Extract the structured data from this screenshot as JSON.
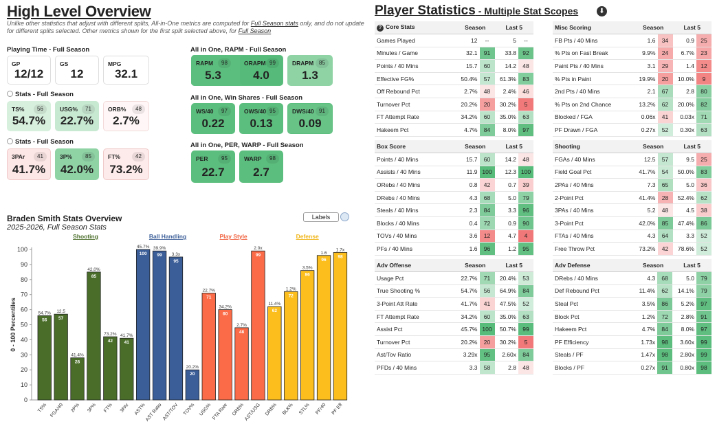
{
  "overview": {
    "title": "High Level Overview",
    "note_a": "Unlike other statistics that adjust with different splits, All-in-One metrics are computed for ",
    "note_link1": "Full Season stats",
    "note_b": " only, and do not update for different splits selected. Other metrics shown for the first split selected above, for ",
    "note_link2": "Full Season",
    "playing_time": {
      "title": "Playing Time - Full Season",
      "cards": [
        {
          "label": "GP",
          "value": "12/12"
        },
        {
          "label": "GS",
          "value": "12"
        },
        {
          "label": "MPG",
          "value": "32.1"
        }
      ]
    },
    "stats1": {
      "title": "Stats - Full Season",
      "cards": [
        {
          "label": "TS%",
          "value": "54.7%",
          "pct": "56"
        },
        {
          "label": "USG%",
          "value": "22.7%",
          "pct": "71"
        },
        {
          "label": "ORB%",
          "value": "2.7%",
          "pct": "48"
        }
      ]
    },
    "stats2": {
      "title": "Stats - Full Season",
      "cards": [
        {
          "label": "3PAr",
          "value": "41.7%",
          "pct": "41"
        },
        {
          "label": "3P%",
          "value": "42.0%",
          "pct": "85"
        },
        {
          "label": "FT%",
          "value": "73.2%",
          "pct": "42"
        }
      ]
    },
    "rapm": {
      "title": "All in One, RAPM - Full Season",
      "cards": [
        {
          "label": "RAPM",
          "value": "5.3",
          "pct": "98"
        },
        {
          "label": "ORAPM",
          "value": "4.0",
          "pct": "99"
        },
        {
          "label": "DRAPM",
          "value": "1.3",
          "pct": "85"
        }
      ]
    },
    "ws": {
      "title": "All in One, Win Shares - Full Season",
      "cards": [
        {
          "label": "WS/40",
          "value": "0.22",
          "pct": "97"
        },
        {
          "label": "OWS/40",
          "value": "0.13",
          "pct": "95"
        },
        {
          "label": "DWS/40",
          "value": "0.09",
          "pct": "91"
        }
      ]
    },
    "per": {
      "title": "All in One, PER, WARP - Full Season",
      "cards": [
        {
          "label": "PER",
          "value": "22.7",
          "pct": "95"
        },
        {
          "label": "WARP",
          "value": "2.7",
          "pct": "98"
        }
      ]
    }
  },
  "chart_header": {
    "title": "Braden Smith Stats Overview",
    "subtitle": "2025-2026, Full Season Stats",
    "labels_toggle": "Labels"
  },
  "chart_data": {
    "type": "bar",
    "ylabel": "0 - 100 Percentiles",
    "ylim": [
      0,
      100
    ],
    "yticks": [
      0,
      10,
      20,
      30,
      40,
      50,
      60,
      70,
      80,
      90,
      100
    ],
    "groups": [
      {
        "name": "Shooting",
        "color": "#4a6e2a",
        "title_color": "#4a6e2a"
      },
      {
        "name": "Ball Handling",
        "color": "#3b5e98",
        "title_color": "#3b5e98"
      },
      {
        "name": "Play Style",
        "color": "#fb6b47",
        "title_color": "#f0623f"
      },
      {
        "name": "Defense",
        "color": "#fbbe1c",
        "title_color": "#f0b414"
      }
    ],
    "bars": [
      {
        "cat": "TS%",
        "value": 56,
        "label": "54.7%",
        "group": 0
      },
      {
        "cat": "FGA/40",
        "value": 57,
        "label": "12.5",
        "group": 0
      },
      {
        "cat": "2P%",
        "value": 28,
        "label": "41.4%",
        "group": 0
      },
      {
        "cat": "3P%",
        "value": 85,
        "label": "42.0%",
        "group": 0
      },
      {
        "cat": "FT%",
        "value": 42,
        "label": "73.2%",
        "group": 0
      },
      {
        "cat": "3PAr",
        "value": 41,
        "label": "41.7%",
        "group": 0
      },
      {
        "cat": "AST%",
        "value": 100,
        "label": "45.7%",
        "group": 1
      },
      {
        "cat": "AST Ratio",
        "value": 99,
        "label": "39.9%",
        "group": 1
      },
      {
        "cat": "AST/TOV",
        "value": 95,
        "label": "3.3x",
        "group": 1
      },
      {
        "cat": "TOV%",
        "value": 20,
        "label": "20.2%",
        "group": 1
      },
      {
        "cat": "USG%",
        "value": 71,
        "label": "22.7%",
        "group": 2
      },
      {
        "cat": "FTA Rate",
        "value": 60,
        "label": "34.2%",
        "group": 2
      },
      {
        "cat": "ORB%",
        "value": 48,
        "label": "2.7%",
        "group": 2
      },
      {
        "cat": "AST/USG",
        "value": 99,
        "label": "2.0x",
        "group": 2
      },
      {
        "cat": "DRB%",
        "value": 62,
        "label": "11.4%",
        "group": 3
      },
      {
        "cat": "BLK%",
        "value": 72,
        "label": "1.2%",
        "group": 3
      },
      {
        "cat": "STL%",
        "value": 86,
        "label": "3.5%",
        "group": 3
      },
      {
        "cat": "PF/40",
        "value": 96,
        "label": "1.6",
        "group": 3
      },
      {
        "cat": "PF Eff",
        "value": 98,
        "label": "1.7x",
        "group": 3
      }
    ]
  },
  "player_stats": {
    "title": "Player Statistics",
    "subtitle": " - Multiple Stat Scopes",
    "tables": [
      {
        "title": "Core Stats",
        "icon": true,
        "rows": [
          [
            "Games Played",
            "12",
            "--",
            "5",
            "--"
          ],
          [
            "Minutes / Game",
            "32.1",
            "91",
            "33.8",
            "92"
          ],
          [
            "Points / 40 Mins",
            "15.7",
            "60",
            "14.2",
            "48"
          ],
          [
            "Effective FG%",
            "50.4%",
            "57",
            "61.3%",
            "83"
          ],
          [
            "Off Rebound Pct",
            "2.7%",
            "48",
            "2.4%",
            "46"
          ],
          [
            "Turnover Pct",
            "20.2%",
            "20",
            "30.2%",
            "5"
          ],
          [
            "FT Attempt Rate",
            "34.2%",
            "60",
            "35.0%",
            "63"
          ],
          [
            "Hakeem Pct",
            "4.7%",
            "84",
            "8.0%",
            "97"
          ]
        ]
      },
      {
        "title": "Misc Scoring",
        "rows": [
          [
            "FB Pts / 40 Mins",
            "1.6",
            "34",
            "0.9",
            "25"
          ],
          [
            "% Pts on Fast Break",
            "9.9%",
            "24",
            "6.7%",
            "23"
          ],
          [
            "Paint Pts / 40 Mins",
            "3.1",
            "29",
            "1.4",
            "12"
          ],
          [
            "% Pts in Paint",
            "19.9%",
            "20",
            "10.0%",
            "9"
          ],
          [
            "2nd Pts / 40 Mins",
            "2.1",
            "67",
            "2.8",
            "80"
          ],
          [
            "% Pts on 2nd Chance",
            "13.2%",
            "62",
            "20.0%",
            "82"
          ],
          [
            "Blocked / FGA",
            "0.06x",
            "41",
            "0.03x",
            "71"
          ],
          [
            "PF Drawn / FGA",
            "0.27x",
            "52",
            "0.30x",
            "63"
          ]
        ]
      },
      {
        "title": "Box Score",
        "rows": [
          [
            "Points / 40 Mins",
            "15.7",
            "60",
            "14.2",
            "48"
          ],
          [
            "Assists / 40 Mins",
            "11.9",
            "100",
            "12.3",
            "100"
          ],
          [
            "ORebs / 40 Mins",
            "0.8",
            "42",
            "0.7",
            "39"
          ],
          [
            "DRebs / 40 Mins",
            "4.3",
            "68",
            "5.0",
            "79"
          ],
          [
            "Steals / 40 Mins",
            "2.3",
            "84",
            "3.3",
            "96"
          ],
          [
            "Blocks / 40 Mins",
            "0.4",
            "72",
            "0.9",
            "90"
          ],
          [
            "TOVs / 40 Mins",
            "3.6",
            "12",
            "4.7",
            "4"
          ],
          [
            "PFs / 40 Mins",
            "1.6",
            "96",
            "1.2",
            "95"
          ]
        ]
      },
      {
        "title": "Shooting",
        "rows": [
          [
            "FGAs / 40 Mins",
            "12.5",
            "57",
            "9.5",
            "25"
          ],
          [
            "Field Goal Pct",
            "41.7%",
            "54",
            "50.0%",
            "83"
          ],
          [
            "2PAs / 40 Mins",
            "7.3",
            "65",
            "5.0",
            "36"
          ],
          [
            "2-Point Pct",
            "41.4%",
            "28",
            "52.4%",
            "62"
          ],
          [
            "3PAs / 40 Mins",
            "5.2",
            "48",
            "4.5",
            "38"
          ],
          [
            "3-Point Pct",
            "42.0%",
            "85",
            "47.4%",
            "86"
          ],
          [
            "FTAs / 40 Mins",
            "4.3",
            "64",
            "3.3",
            "52"
          ],
          [
            "Free Throw Pct",
            "73.2%",
            "42",
            "78.6%",
            "52"
          ]
        ]
      },
      {
        "title": "Adv Offense",
        "rows": [
          [
            "Usage Pct",
            "22.7%",
            "71",
            "20.4%",
            "53"
          ],
          [
            "True Shooting %",
            "54.7%",
            "56",
            "64.9%",
            "84"
          ],
          [
            "3-Point Att Rate",
            "41.7%",
            "41",
            "47.5%",
            "52"
          ],
          [
            "FT Attempt Rate",
            "34.2%",
            "60",
            "35.0%",
            "63"
          ],
          [
            "Assist Pct",
            "45.7%",
            "100",
            "50.7%",
            "99"
          ],
          [
            "Turnover Pct",
            "20.2%",
            "20",
            "30.2%",
            "5"
          ],
          [
            "Ast/Tov Ratio",
            "3.29x",
            "95",
            "2.60x",
            "84"
          ],
          [
            "PFDs / 40 Mins",
            "3.3",
            "58",
            "2.8",
            "48"
          ]
        ]
      },
      {
        "title": "Adv Defense",
        "rows": [
          [
            "DRebs / 40 Mins",
            "4.3",
            "68",
            "5.0",
            "79"
          ],
          [
            "Def Rebound Pct",
            "11.4%",
            "62",
            "14.1%",
            "79"
          ],
          [
            "Steal Pct",
            "3.5%",
            "86",
            "5.2%",
            "97"
          ],
          [
            "Block Pct",
            "1.2%",
            "72",
            "2.8%",
            "91"
          ],
          [
            "Hakeem Pct",
            "4.7%",
            "84",
            "8.0%",
            "97"
          ],
          [
            "PF Efficiency",
            "1.73x",
            "98",
            "3.60x",
            "99"
          ],
          [
            "Steals / PF",
            "1.47x",
            "98",
            "2.80x",
            "99"
          ],
          [
            "Blocks / PF",
            "0.27x",
            "91",
            "0.80x",
            "98"
          ]
        ]
      }
    ],
    "col_season": "Season",
    "col_last5": "Last 5"
  }
}
